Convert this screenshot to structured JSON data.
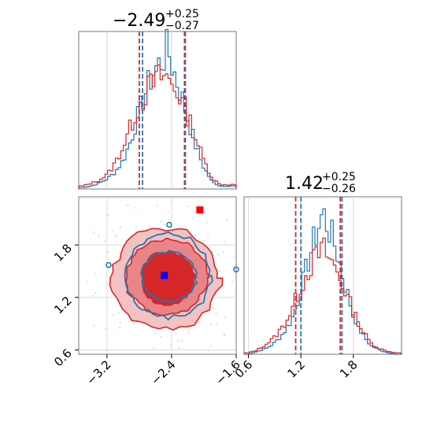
{
  "colors": {
    "blue": "#1f77b4",
    "red": "#d62728",
    "red_light": "#f3c2c3",
    "red_mid": "#e98587",
    "grid": "#d9d9d9",
    "axis": "#777777",
    "blue_marker": "#0000ff",
    "red_marker": "#ff0000"
  },
  "chart_data": [
    {
      "type": "histogram",
      "panel": "x-marginal",
      "title": {
        "value": "−2.49",
        "plus": "+0.25",
        "minus": "−0.27"
      },
      "xlim": [
        -3.55,
        -1.6
      ],
      "grid": true,
      "quantile_lines": {
        "blue": [
          -2.76,
          -2.24
        ],
        "red": [
          -2.8,
          -2.23
        ]
      },
      "series": [
        {
          "color": "blue",
          "bin_centers": [
            -3.5,
            -3.4,
            -3.3,
            -3.2,
            -3.1,
            -3.0,
            -2.9,
            -2.8,
            -2.7,
            -2.6,
            -2.5,
            -2.45,
            -2.4,
            -2.3,
            -2.2,
            -2.1,
            -2.0,
            -1.9,
            -1.8
          ],
          "density": [
            0.01,
            0.02,
            0.04,
            0.07,
            0.12,
            0.2,
            0.35,
            0.55,
            0.72,
            0.85,
            0.92,
            1.0,
            0.88,
            0.7,
            0.5,
            0.3,
            0.15,
            0.05,
            0.02
          ]
        },
        {
          "color": "red",
          "bin_centers": [
            -3.5,
            -3.4,
            -3.3,
            -3.2,
            -3.1,
            -3.0,
            -2.9,
            -2.8,
            -2.7,
            -2.6,
            -2.5,
            -2.45,
            -2.4,
            -2.3,
            -2.2,
            -2.1,
            -2.0,
            -1.9,
            -1.8
          ],
          "density": [
            0.02,
            0.04,
            0.06,
            0.1,
            0.18,
            0.3,
            0.45,
            0.6,
            0.7,
            0.76,
            0.8,
            0.78,
            0.74,
            0.66,
            0.52,
            0.36,
            0.2,
            0.08,
            0.03
          ]
        }
      ]
    },
    {
      "type": "contour",
      "panel": "joint",
      "xlim": [
        -3.55,
        -1.6
      ],
      "ylim": [
        0.55,
        2.35
      ],
      "xticks": [
        "−3.2",
        "−2.4",
        "−1.6"
      ],
      "xtick_values": [
        -3.2,
        -2.4,
        -1.6
      ],
      "yticks": [
        "0.6",
        "1.2",
        "1.8"
      ],
      "ytick_values": [
        0.6,
        1.2,
        1.8
      ],
      "grid": true,
      "red_contours": [
        {
          "level": "outer",
          "center": [
            -2.47,
            1.42
          ],
          "rx": 0.66,
          "ry": 0.58
        },
        {
          "level": "middle",
          "center": [
            -2.46,
            1.43
          ],
          "rx": 0.5,
          "ry": 0.43
        },
        {
          "level": "inner",
          "center": [
            -2.45,
            1.42
          ],
          "rx": 0.33,
          "ry": 0.3
        }
      ],
      "blue_contours": [
        {
          "level": "outer",
          "center": [
            -2.44,
            1.45
          ],
          "rx": 0.52,
          "ry": 0.48
        },
        {
          "level": "inner",
          "center": [
            -2.43,
            1.44
          ],
          "rx": 0.34,
          "ry": 0.28
        }
      ],
      "markers": [
        {
          "color": "blue_marker",
          "x": -2.49,
          "y": 1.45
        },
        {
          "color": "red_marker",
          "x": -2.05,
          "y": 2.2
        }
      ]
    },
    {
      "type": "histogram",
      "panel": "y-marginal",
      "title": {
        "value": "1.42",
        "plus": "+0.25",
        "minus": "−0.26"
      },
      "xlim": [
        0.55,
        2.35
      ],
      "xticks": [
        "0.6",
        "1.2",
        "1.8"
      ],
      "xtick_values": [
        0.6,
        1.2,
        1.8
      ],
      "grid": true,
      "quantile_lines": {
        "blue": [
          1.2,
          1.67
        ],
        "red": [
          1.14,
          1.65
        ]
      },
      "series": [
        {
          "color": "blue",
          "bin_centers": [
            0.6,
            0.7,
            0.8,
            0.9,
            1.0,
            1.1,
            1.2,
            1.3,
            1.4,
            1.45,
            1.5,
            1.6,
            1.7,
            1.8,
            1.9,
            2.0,
            2.1,
            2.2,
            2.3
          ],
          "density": [
            0.0,
            0.02,
            0.04,
            0.08,
            0.15,
            0.25,
            0.45,
            0.7,
            0.9,
            1.0,
            0.92,
            0.75,
            0.5,
            0.28,
            0.14,
            0.06,
            0.03,
            0.01,
            0.0
          ]
        },
        {
          "color": "red",
          "bin_centers": [
            0.6,
            0.7,
            0.8,
            0.9,
            1.0,
            1.1,
            1.2,
            1.3,
            1.4,
            1.45,
            1.5,
            1.6,
            1.7,
            1.8,
            1.9,
            2.0,
            2.1,
            2.2,
            2.3
          ],
          "density": [
            0.01,
            0.03,
            0.07,
            0.12,
            0.2,
            0.32,
            0.48,
            0.62,
            0.7,
            0.74,
            0.7,
            0.6,
            0.46,
            0.3,
            0.17,
            0.08,
            0.04,
            0.02,
            0.01
          ]
        }
      ]
    }
  ]
}
